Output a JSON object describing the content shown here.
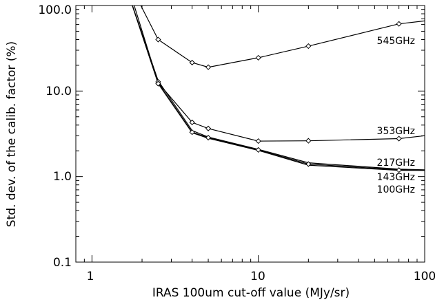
{
  "chart_data": {
    "type": "line",
    "title": "",
    "xlabel": "IRAS 100um cut-off value (MJy/sr)",
    "ylabel": "Std. dev. of the calib. factor (%)",
    "xscale": "log",
    "yscale": "log",
    "xlim": [
      0.8,
      100
    ],
    "ylim": [
      0.1,
      100
    ],
    "xtick_labels": [
      "1",
      "10",
      "100"
    ],
    "ytick_labels": [
      "0.1",
      "1.0",
      "10.0",
      "100.0"
    ],
    "grid": false,
    "legend": "series labels placed at the right end of the lines",
    "series": [
      {
        "name": "545GHz",
        "x": [
          1.8,
          2.5,
          4,
          5,
          10,
          20,
          70,
          100
        ],
        "y": [
          140,
          40,
          21.5,
          19,
          24.5,
          33.5,
          61,
          66
        ]
      },
      {
        "name": "353GHz",
        "x": [
          1.7,
          2.5,
          4,
          5,
          10,
          20,
          70,
          100
        ],
        "y": [
          140,
          12.5,
          4.3,
          3.65,
          2.6,
          2.62,
          2.78,
          3.0
        ]
      },
      {
        "name": "217GHz",
        "x": [
          1.65,
          2.5,
          4,
          5,
          10,
          20,
          70,
          100
        ],
        "y": [
          140,
          13.2,
          3.45,
          2.9,
          2.08,
          1.45,
          1.22,
          1.2
        ]
      },
      {
        "name": "143GHz",
        "x": [
          1.65,
          2.5,
          4,
          5,
          10,
          20,
          70,
          100
        ],
        "y": [
          140,
          12.5,
          3.3,
          2.85,
          2.05,
          1.4,
          1.2,
          1.18
        ]
      },
      {
        "name": "100GHz",
        "x": [
          1.65,
          2.5,
          4,
          5,
          10,
          20,
          70,
          100
        ],
        "y": [
          140,
          12.2,
          3.25,
          2.8,
          2.02,
          1.36,
          1.18,
          1.18
        ]
      }
    ],
    "markers": [
      {
        "x": 2.5,
        "y": 40
      },
      {
        "x": 4,
        "y": 21.5
      },
      {
        "x": 5,
        "y": 19
      },
      {
        "x": 10,
        "y": 24.5
      },
      {
        "x": 20,
        "y": 33.5
      },
      {
        "x": 70,
        "y": 61
      },
      {
        "x": 2.5,
        "y": 12.8
      },
      {
        "x": 4,
        "y": 4.3
      },
      {
        "x": 5,
        "y": 3.65
      },
      {
        "x": 10,
        "y": 2.6
      },
      {
        "x": 20,
        "y": 2.62
      },
      {
        "x": 70,
        "y": 2.78
      },
      {
        "x": 2.5,
        "y": 12.2
      },
      {
        "x": 4,
        "y": 3.3
      },
      {
        "x": 5,
        "y": 2.85
      },
      {
        "x": 10,
        "y": 2.05
      },
      {
        "x": 20,
        "y": 1.4
      },
      {
        "x": 70,
        "y": 1.19
      }
    ]
  }
}
